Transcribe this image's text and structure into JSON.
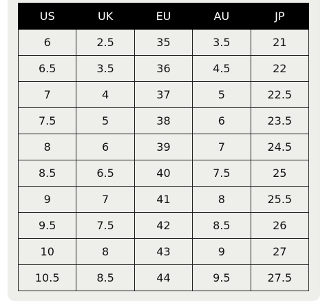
{
  "size_chart": {
    "headers": [
      "US",
      "UK",
      "EU",
      "AU",
      "JP"
    ],
    "rows": [
      [
        "6",
        "2.5",
        "35",
        "3.5",
        "21"
      ],
      [
        "6.5",
        "3.5",
        "36",
        "4.5",
        "22"
      ],
      [
        "7",
        "4",
        "37",
        "5",
        "22.5"
      ],
      [
        "7.5",
        "5",
        "38",
        "6",
        "23.5"
      ],
      [
        "8",
        "6",
        "39",
        "7",
        "24.5"
      ],
      [
        "8.5",
        "6.5",
        "40",
        "7.5",
        "25"
      ],
      [
        "9",
        "7",
        "41",
        "8",
        "25.5"
      ],
      [
        "9.5",
        "7.5",
        "42",
        "8.5",
        "26"
      ],
      [
        "10",
        "8",
        "43",
        "9",
        "27"
      ],
      [
        "10.5",
        "8.5",
        "44",
        "9.5",
        "27.5"
      ]
    ]
  },
  "colors": {
    "header_background": "#000000",
    "header_text": "#ffffff",
    "cell_background": "#eeeeea",
    "grid_lines": "#1e1e1e"
  }
}
